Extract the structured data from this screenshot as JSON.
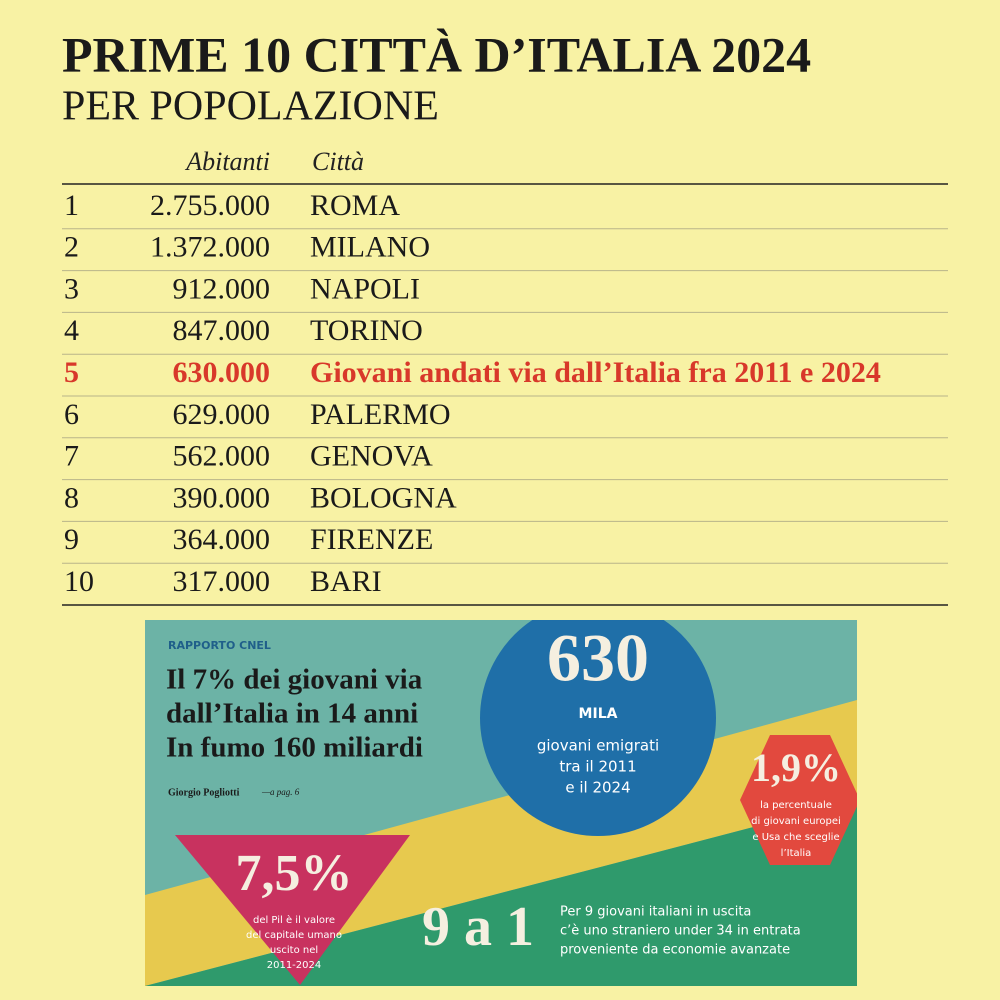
{
  "header": {
    "title": "PRIME 10 CITTÀ D’ITALIA 2024",
    "subtitle": "PER POPOLAZIONE"
  },
  "table": {
    "columns": [
      "Abitanti",
      "Città"
    ],
    "rows": [
      {
        "rank": "1",
        "population": "2.755.000",
        "city": "ROMA"
      },
      {
        "rank": "2",
        "population": "1.372.000",
        "city": "MILANO"
      },
      {
        "rank": "3",
        "population": "912.000",
        "city": "NAPOLI"
      },
      {
        "rank": "4",
        "population": "847.000",
        "city": "TORINO"
      },
      {
        "rank": "5",
        "population": "630.000",
        "city": "Giovani andati via dall’Italia fra 2011 e 2024",
        "color": "#d8382a"
      },
      {
        "rank": "6",
        "population": "629.000",
        "city": "PALERMO"
      },
      {
        "rank": "7",
        "population": "562.000",
        "city": "GENOVA"
      },
      {
        "rank": "8",
        "population": "390.000",
        "city": "BOLOGNA"
      },
      {
        "rank": "9",
        "population": "364.000",
        "city": "FIRENZE"
      },
      {
        "rank": "10",
        "population": "317.000",
        "city": "BARI"
      }
    ]
  },
  "infographic": {
    "kicker": "RAPPORTO CNEL",
    "headline": [
      "Il 7% dei giovani via",
      "dall’Italia in 14 anni",
      "In fumo 160 miliardi"
    ],
    "author": "Giorgio Pogliotti",
    "page_ref": "—a pag. 6",
    "circle": {
      "number": "630",
      "unit": "MILA",
      "text": [
        "giovani emigrati",
        "tra il 2011",
        "e il 2024"
      ]
    },
    "hexagon": {
      "number": "1,9%",
      "text": [
        "la percentuale",
        "di giovani europei",
        "e Usa che sceglie",
        "l’Italia"
      ]
    },
    "triangle": {
      "number": "7,5%",
      "text": [
        "del Pil è il valore",
        "del capitale umano",
        "uscito nel",
        "2011-2024"
      ]
    },
    "ratio": {
      "number": "9 a 1",
      "text": [
        "Per 9 giovani italiani in uscita",
        "c’è uno straniero under 34 in entrata",
        "proveniente da economie avanzate"
      ]
    }
  }
}
